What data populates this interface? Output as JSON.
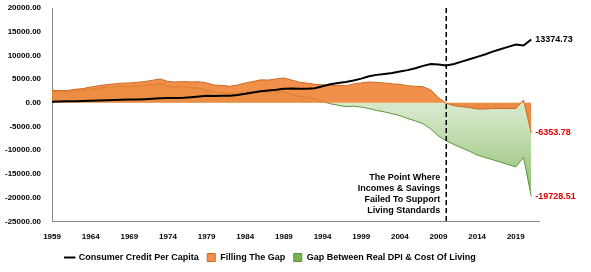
{
  "chart_data": {
    "type": "line",
    "x": [
      1959,
      1960,
      1961,
      1962,
      1963,
      1964,
      1965,
      1966,
      1967,
      1968,
      1969,
      1970,
      1971,
      1972,
      1973,
      1974,
      1975,
      1976,
      1977,
      1978,
      1979,
      1980,
      1981,
      1982,
      1983,
      1984,
      1985,
      1986,
      1987,
      1988,
      1989,
      1990,
      1991,
      1992,
      1993,
      1994,
      1995,
      1996,
      1997,
      1998,
      1999,
      2000,
      2001,
      2002,
      2003,
      2004,
      2005,
      2006,
      2007,
      2008,
      2009,
      2010,
      2011,
      2012,
      2013,
      2014,
      2015,
      2016,
      2017,
      2018,
      2019,
      2020,
      2021
    ],
    "xlim": [
      1959,
      2022
    ],
    "xticks": [
      1959,
      1964,
      1969,
      1974,
      1979,
      1984,
      1989,
      1994,
      1999,
      2004,
      2009,
      2014,
      2019
    ],
    "ylim": [
      -25000,
      20000
    ],
    "yticks": [
      {
        "value": -25000,
        "label": "-25000.00"
      },
      {
        "value": -20000,
        "label": "-20000.00"
      },
      {
        "value": -15000,
        "label": "-15000.00"
      },
      {
        "value": -10000,
        "label": "-10000.00"
      },
      {
        "value": -5000,
        "label": "-5000.00"
      },
      {
        "value": 0,
        "label": "0.00"
      },
      {
        "value": 5000,
        "label": "5000.00"
      },
      {
        "value": 10000,
        "label": "10000.00"
      },
      {
        "value": 15000,
        "label": "15000.00"
      },
      {
        "value": 20000,
        "label": "20000.00"
      }
    ],
    "grid": false,
    "legend": "bottom",
    "series": [
      {
        "name": "Filling The Gap",
        "type": "area",
        "color": "#f07d2c",
        "values": [
          2650,
          2600,
          2620,
          2860,
          3000,
          3350,
          3600,
          3840,
          3980,
          4140,
          4200,
          4320,
          4480,
          4760,
          5050,
          4500,
          4400,
          4480,
          4400,
          4450,
          4200,
          3750,
          3680,
          3500,
          3750,
          4200,
          4500,
          4850,
          4800,
          5050,
          5250,
          4800,
          4350,
          4150,
          3900,
          3800,
          3700,
          3700,
          3600,
          4000,
          4200,
          4400,
          4300,
          4200,
          4000,
          3900,
          3600,
          3500,
          3400,
          2700,
          1100,
          -100,
          -600,
          -800,
          -1000,
          -1300,
          -1300,
          -1200,
          -1200,
          -1200,
          -1200,
          600,
          -6353.78
        ],
        "value_labels": [
          null,
          null,
          null,
          null,
          null,
          null,
          null,
          null,
          null,
          null,
          null,
          null,
          null,
          null,
          null,
          null,
          null,
          null,
          null,
          null,
          null,
          null,
          null,
          null,
          null,
          null,
          null,
          null,
          null,
          null,
          null,
          null,
          null,
          null,
          null,
          null,
          null,
          null,
          null,
          null,
          null,
          null,
          null,
          null,
          null,
          null,
          null,
          null,
          null,
          null,
          null,
          null,
          null,
          null,
          null,
          null,
          null,
          null,
          null,
          null,
          null,
          null,
          "-6353.78"
        ]
      },
      {
        "name": "Gap Between Real DPI & Cost Of Living",
        "type": "area",
        "color": "#70ad47",
        "values": [
          2400,
          2300,
          2300,
          2500,
          2600,
          2900,
          3100,
          3300,
          3400,
          3500,
          3500,
          3600,
          3700,
          3900,
          4100,
          3500,
          3400,
          3400,
          3200,
          3100,
          2700,
          2300,
          2200,
          2000,
          2100,
          2300,
          2300,
          2400,
          2200,
          2300,
          2300,
          1800,
          1400,
          1200,
          800,
          300,
          -200,
          -500,
          -800,
          -700,
          -900,
          -1200,
          -1600,
          -1900,
          -2300,
          -2700,
          -3300,
          -3800,
          -4400,
          -5500,
          -7000,
          -8000,
          -8800,
          -9500,
          -10200,
          -11000,
          -11500,
          -12000,
          -12500,
          -13000,
          -13500,
          -11500,
          -19728.51
        ],
        "value_labels": [
          null,
          null,
          null,
          null,
          null,
          null,
          null,
          null,
          null,
          null,
          null,
          null,
          null,
          null,
          null,
          null,
          null,
          null,
          null,
          null,
          null,
          null,
          null,
          null,
          null,
          null,
          null,
          null,
          null,
          null,
          null,
          null,
          null,
          null,
          null,
          null,
          null,
          null,
          null,
          null,
          null,
          null,
          null,
          null,
          null,
          null,
          null,
          null,
          null,
          null,
          null,
          null,
          null,
          null,
          null,
          null,
          null,
          null,
          null,
          null,
          null,
          null,
          "-19728.51"
        ]
      },
      {
        "name": "Consumer Credit Per Capita",
        "type": "line",
        "color": "#000000",
        "values": [
          250,
          300,
          320,
          360,
          400,
          450,
          500,
          540,
          580,
          640,
          700,
          720,
          780,
          860,
          950,
          1000,
          1000,
          1080,
          1200,
          1350,
          1500,
          1450,
          1480,
          1500,
          1650,
          1900,
          2200,
          2450,
          2600,
          2750,
          2950,
          3000,
          2950,
          2950,
          3100,
          3500,
          3900,
          4200,
          4400,
          4700,
          5100,
          5600,
          5900,
          6100,
          6300,
          6600,
          6900,
          7300,
          7800,
          8200,
          8100,
          7900,
          8200,
          8700,
          9200,
          9700,
          10200,
          10800,
          11300,
          11800,
          12300,
          12100,
          13374.73
        ],
        "value_labels": [
          null,
          null,
          null,
          null,
          null,
          null,
          null,
          null,
          null,
          null,
          null,
          null,
          null,
          null,
          null,
          null,
          null,
          null,
          null,
          null,
          null,
          null,
          null,
          null,
          null,
          null,
          null,
          null,
          null,
          null,
          null,
          null,
          null,
          null,
          null,
          null,
          null,
          null,
          null,
          null,
          null,
          null,
          null,
          null,
          null,
          null,
          null,
          null,
          null,
          null,
          null,
          null,
          null,
          null,
          null,
          null,
          null,
          null,
          null,
          null,
          null,
          null,
          "13374.73"
        ]
      }
    ],
    "annotations": [
      {
        "x": 2010,
        "line_style": "dashed",
        "color": "#000000",
        "text": [
          "The Point Where",
          "Incomes & Savings",
          "Failed To Support",
          "Living Standards"
        ]
      }
    ]
  }
}
